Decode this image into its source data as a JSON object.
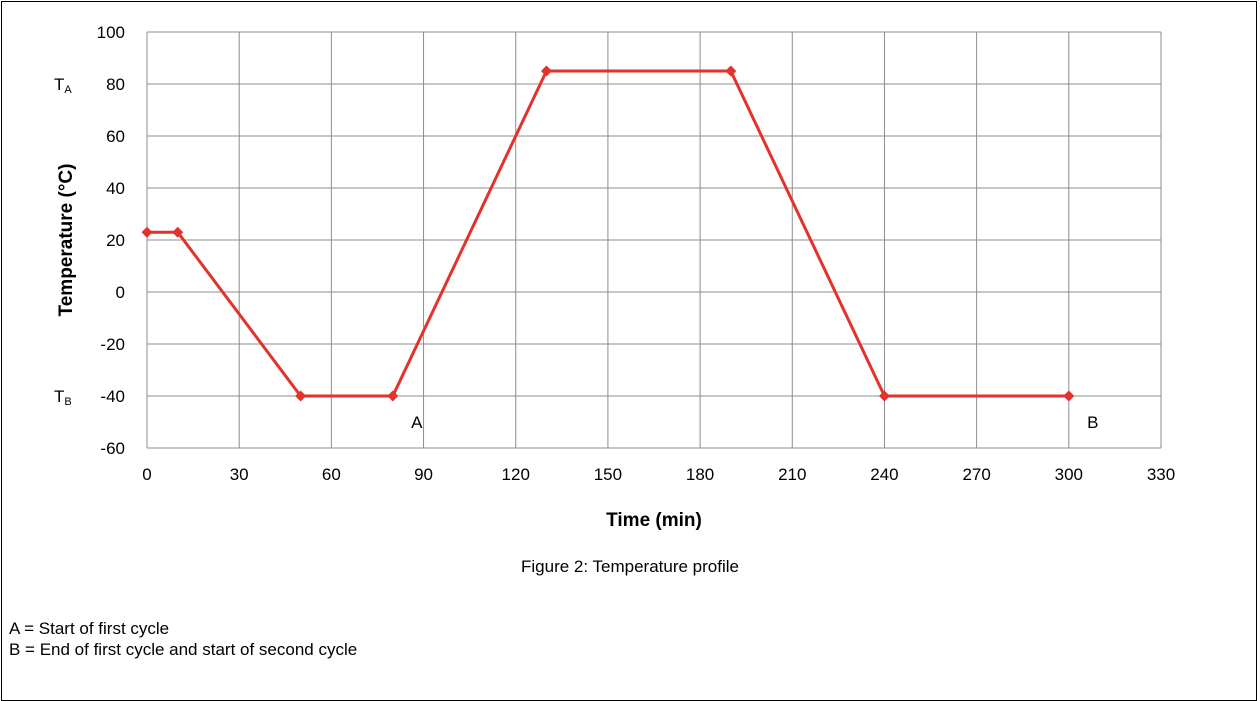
{
  "chart_data": {
    "type": "line",
    "title": "",
    "xlabel": "Time (min)",
    "ylabel": "Temperature (°C)",
    "xlim": [
      0,
      330
    ],
    "ylim": [
      -60,
      100
    ],
    "xticks": [
      0,
      30,
      60,
      90,
      120,
      150,
      180,
      210,
      240,
      270,
      300,
      330
    ],
    "yticks": [
      -60,
      -40,
      -20,
      0,
      20,
      40,
      60,
      80,
      100
    ],
    "grid": true,
    "series": [
      {
        "color": "#e3322b",
        "x": [
          0,
          10,
          50,
          80,
          130,
          190,
          240,
          300
        ],
        "y": [
          23,
          23,
          -40,
          -40,
          85,
          85,
          -40,
          -40
        ]
      }
    ],
    "level_labels": [
      {
        "main": "T",
        "sub": "A",
        "y": 80
      },
      {
        "main": "T",
        "sub": "B",
        "y": -40
      }
    ],
    "point_annotations": [
      {
        "text": "A",
        "x": 80,
        "y": -40
      },
      {
        "text": "B",
        "x": 300,
        "y": -40
      }
    ]
  },
  "caption": "Figure 2: Temperature profile",
  "legend_notes": [
    "A = Start of first cycle",
    "B = End of first cycle and start of second cycle"
  ]
}
